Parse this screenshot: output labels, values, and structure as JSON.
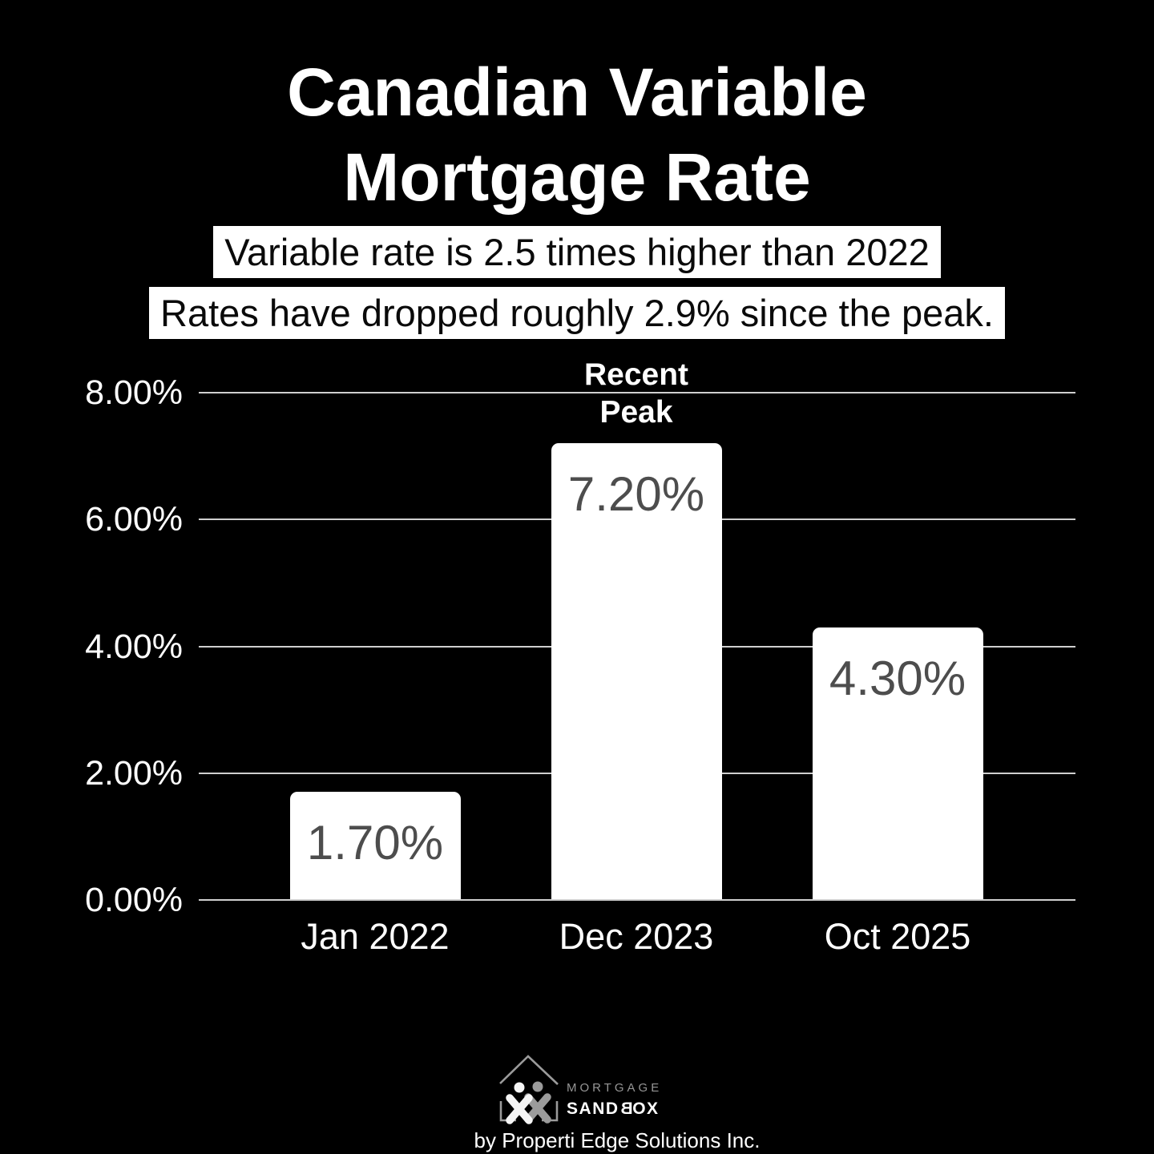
{
  "header": {
    "title_line1": "Canadian Variable",
    "title_line2": "Mortgage Rate",
    "subtitle_line1": "Variable rate is 2.5 times higher than 2022",
    "subtitle_line2": "Rates have dropped roughly 2.9% since the peak."
  },
  "chart_data": {
    "type": "bar",
    "title": "Canadian Variable Mortgage Rate",
    "categories": [
      "Jan 2022",
      "Dec 2023",
      "Oct 2025"
    ],
    "values": [
      1.7,
      7.2,
      4.3
    ],
    "value_labels": [
      "1.70%",
      "7.20%",
      "4.30%"
    ],
    "ylim": [
      0,
      8
    ],
    "y_ticks": [
      {
        "value": 8,
        "label": "8.00%"
      },
      {
        "value": 6,
        "label": "6.00%"
      },
      {
        "value": 4,
        "label": "4.00%"
      },
      {
        "value": 2,
        "label": "2.00%"
      },
      {
        "value": 0,
        "label": "0.00%"
      }
    ],
    "grid": true,
    "legend": "none",
    "annotation": {
      "target_category": "Dec 2023",
      "lines": [
        "Recent",
        "Peak"
      ]
    },
    "colors": {
      "background": "#000000",
      "bar": "#ffffff",
      "value_label": "#4d4d4d",
      "gridline": "#cfcfcf",
      "axis_text": "#ffffff"
    }
  },
  "footer": {
    "logo_name": "mortgage-sandbox-logo",
    "logo_text_top": "MORTGAGE",
    "logo_text_bottom": "SANDBOX",
    "byline": "by Properti Edge Solutions Inc."
  }
}
